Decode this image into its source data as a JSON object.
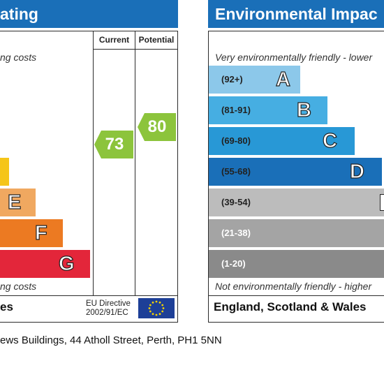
{
  "energy_panel": {
    "title": "ating",
    "col_current": "Current",
    "col_potential": "Potential",
    "top_text": "ng costs",
    "bottom_text": "ng costs",
    "footer_left": "es",
    "eu_directive_line1": "EU Directive",
    "eu_directive_line2": "2002/91/EC",
    "bands": [
      {
        "letter": "",
        "color": "#f5c518"
      },
      {
        "letter": "E",
        "color": "#f0a860"
      },
      {
        "letter": "F",
        "color": "#ec7a22"
      },
      {
        "letter": "G",
        "color": "#e3263a"
      }
    ],
    "current": {
      "value": "73",
      "color": "#8cc43c"
    },
    "potential": {
      "value": "80",
      "color": "#8cc43c"
    }
  },
  "environmental_panel": {
    "title": "Environmental Impac",
    "top_text": "Very environmentally friendly - lower",
    "bottom_text": "Not environmentally friendly - higher",
    "footer": "England, Scotland & Wales",
    "bands": [
      {
        "range": "(92+)",
        "letter": "A",
        "color": "#8cc8ea"
      },
      {
        "range": "(81-91)",
        "letter": "B",
        "color": "#46aee2"
      },
      {
        "range": "(69-80)",
        "letter": "C",
        "color": "#2898d6"
      },
      {
        "range": "(55-68)",
        "letter": "D",
        "color": "#1a6fb8"
      },
      {
        "range": "(39-54)",
        "letter": "",
        "color": "#bcbcbc"
      },
      {
        "range": "(21-38)",
        "letter": "",
        "color": "#a4a4a4"
      },
      {
        "range": "(1-20)",
        "letter": "",
        "color": "#8a8a8a"
      }
    ]
  },
  "address": "ews Buildings, 44 Atholl Street, Perth, PH1 5NN"
}
